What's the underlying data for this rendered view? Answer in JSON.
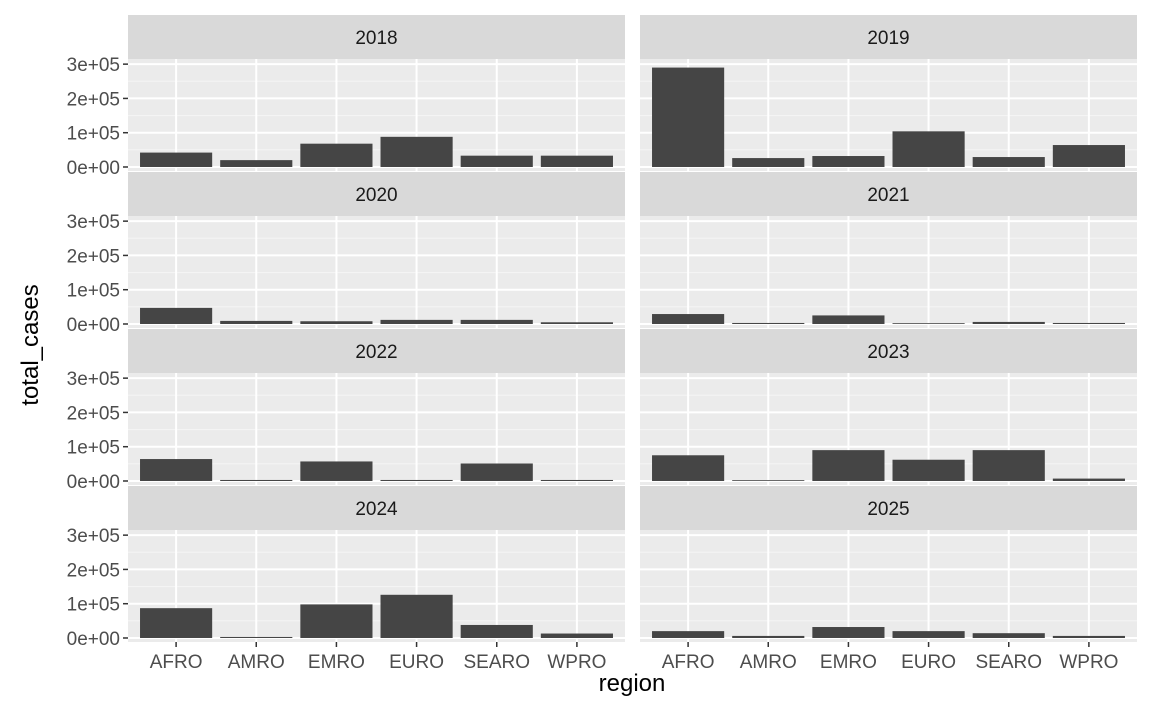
{
  "chart_data": {
    "type": "bar",
    "facet_by": "year",
    "xlabel": "region",
    "ylabel": "total_cases",
    "ylim": [
      0,
      300000
    ],
    "y_ticks": [
      {
        "value": 0,
        "label": "0e+00"
      },
      {
        "value": 100000,
        "label": "1e+05"
      },
      {
        "value": 200000,
        "label": "2e+05"
      },
      {
        "value": 300000,
        "label": "3e+05"
      }
    ],
    "categories": [
      "AFRO",
      "AMRO",
      "EMRO",
      "EURO",
      "SEARO",
      "WPRO"
    ],
    "panels": [
      {
        "label": "2018",
        "values": [
          42000,
          20000,
          68000,
          88000,
          33000,
          33000
        ]
      },
      {
        "label": "2019",
        "values": [
          290000,
          26000,
          32000,
          104000,
          29000,
          64000
        ]
      },
      {
        "label": "2020",
        "values": [
          47000,
          9000,
          8000,
          12000,
          12000,
          5000
        ]
      },
      {
        "label": "2021",
        "values": [
          29000,
          3000,
          25000,
          1000,
          6000,
          3000
        ]
      },
      {
        "label": "2022",
        "values": [
          64000,
          3000,
          57000,
          3000,
          51000,
          3000
        ]
      },
      {
        "label": "2023",
        "values": [
          75000,
          1000,
          90000,
          62000,
          90000,
          7000
        ]
      },
      {
        "label": "2024",
        "values": [
          87000,
          3000,
          98000,
          126000,
          38000,
          13000
        ]
      },
      {
        "label": "2025",
        "values": [
          20000,
          6000,
          32000,
          20000,
          14000,
          6000
        ]
      }
    ],
    "bar_color": "#454545",
    "panel_background": "#EBEBEB",
    "strip_background": "#D9D9D9",
    "grid": true,
    "legend": "none"
  }
}
